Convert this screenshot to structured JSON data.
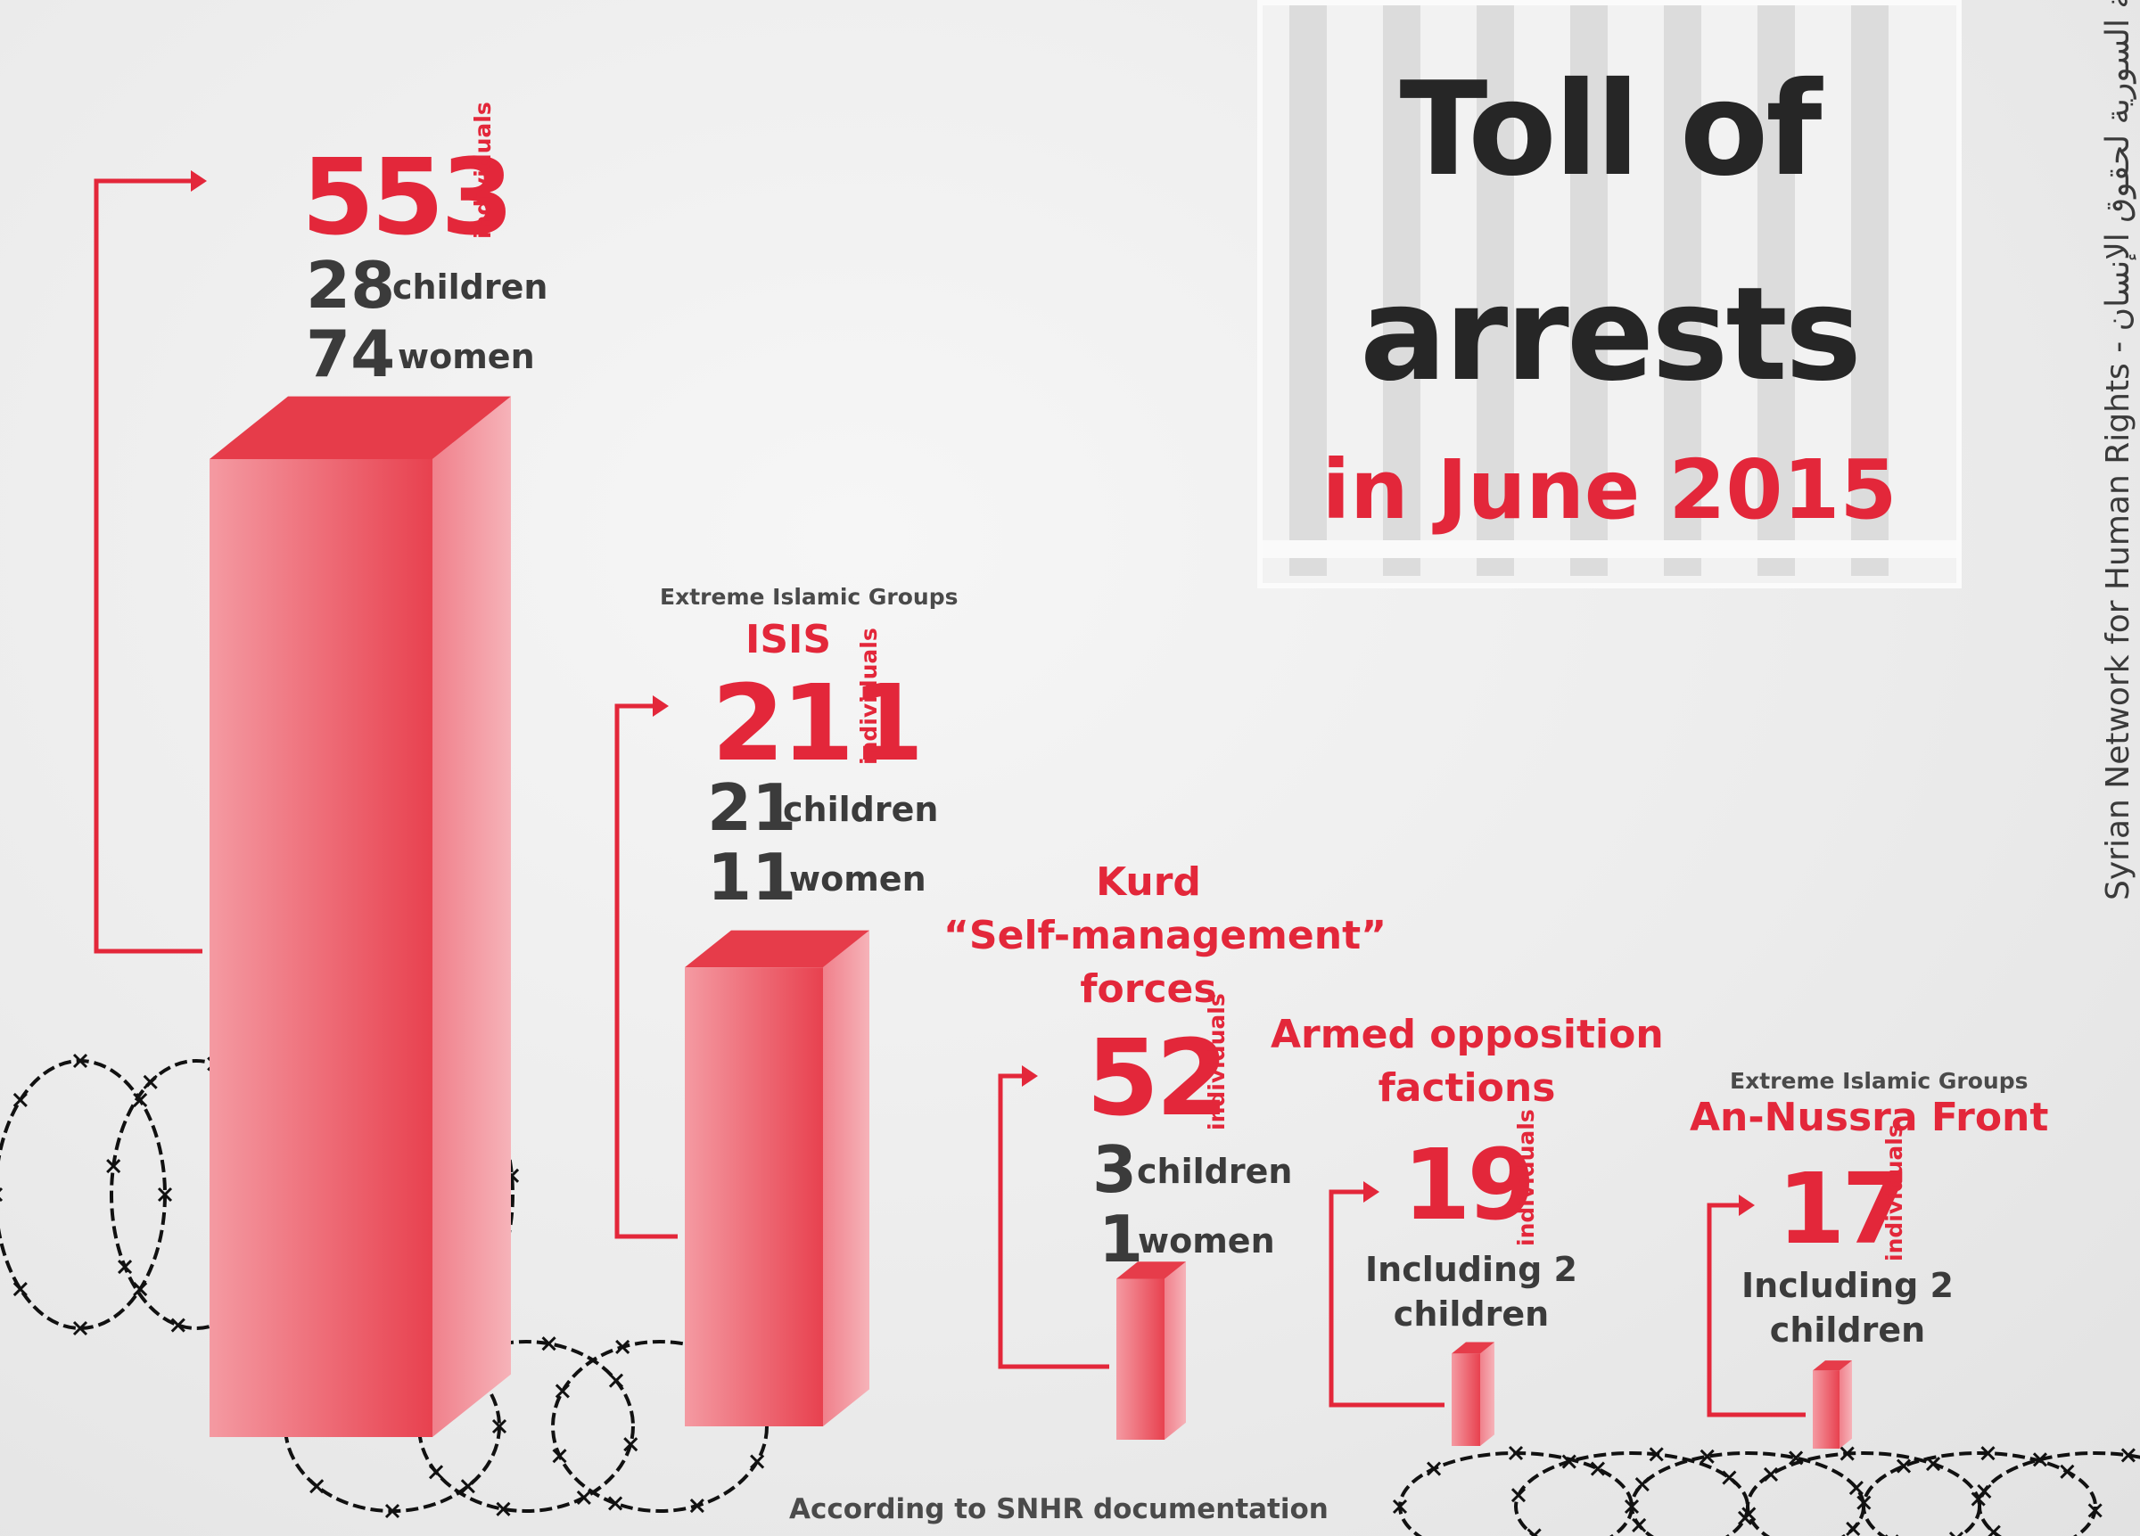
{
  "title": {
    "line1": "Toll of",
    "line2": "arrests",
    "line3": "in June 2015"
  },
  "side_credit": "Syrian Network for Human Rights - الشبكة السورية لحقوق الإنسان",
  "footer": "According to SNHR documentation",
  "unit_label": "individuals",
  "colors": {
    "accent": "#e3273a",
    "dark_text": "#3b3b3b",
    "bar_front": "#ee5a66",
    "bar_side": "#f3a1a8",
    "bar_top": "#e63c4a"
  },
  "icons": [
    "prison-bars-icon",
    "barbed-wire-icon"
  ],
  "chart_data": {
    "type": "bar",
    "title": "Toll of arrests in June 2015",
    "categories": [
      "",
      "ISIS",
      "Kurd “Self-management” forces",
      "Armed opposition factions",
      "An-Nussra Front"
    ],
    "values": [
      553,
      211,
      52,
      19,
      17
    ],
    "groups": [
      {
        "subtitle": "",
        "name": "",
        "value": 553,
        "value_text": "553",
        "children_count": "28",
        "children_label": "children",
        "women_count": "74",
        "women_label": "women"
      },
      {
        "subtitle": "Extreme Islamic Groups",
        "name": "ISIS",
        "value": 211,
        "value_text": "211",
        "children_count": "21",
        "children_label": "children",
        "women_count": "11",
        "women_label": "women"
      },
      {
        "subtitle": "",
        "name_lines": [
          "Kurd",
          "“Self-management”",
          "forces"
        ],
        "value": 52,
        "value_text": "52",
        "children_count": "3",
        "children_label": "children",
        "women_count": "1",
        "women_label": "women"
      },
      {
        "subtitle": "",
        "name_lines": [
          "Armed opposition",
          "factions"
        ],
        "value": 19,
        "value_text": "19",
        "note_lines": [
          "Including 2",
          "children"
        ]
      },
      {
        "subtitle": "Extreme Islamic Groups",
        "name": "An-Nussra Front",
        "value": 17,
        "value_text": "17",
        "note_lines": [
          "Including 2",
          "children"
        ]
      }
    ]
  }
}
